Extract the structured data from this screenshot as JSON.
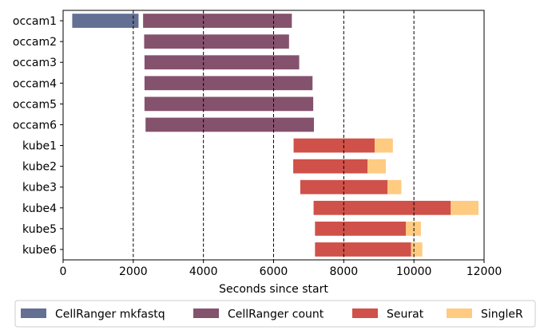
{
  "chart_data": {
    "type": "bar",
    "orientation": "horizontal",
    "stacked": true,
    "categories": [
      "occam1",
      "occam2",
      "occam3",
      "occam4",
      "occam5",
      "occam6",
      "kube1",
      "kube2",
      "kube3",
      "kube4",
      "kube5",
      "kube6"
    ],
    "xlabel": "Seconds since start",
    "xlim": [
      0,
      12000
    ],
    "x_ticks": [
      0,
      2000,
      4000,
      6000,
      8000,
      10000,
      12000
    ],
    "x_tick_labels": [
      "0",
      "2000",
      "4000",
      "6000",
      "8000",
      "10000",
      "12000"
    ],
    "vlines": [
      2000,
      4000,
      6000,
      8000,
      10000
    ],
    "vline_style": "dashed",
    "grid": false,
    "legend_position": "bottom",
    "series": [
      {
        "name": "CellRanger mkfastq",
        "color": "#636f93",
        "segments": [
          [
            260,
            2150
          ],
          null,
          null,
          null,
          null,
          null,
          null,
          null,
          null,
          null,
          null,
          null
        ]
      },
      {
        "name": "CellRanger count",
        "color": "#85526e",
        "segments": [
          [
            2280,
            6520
          ],
          [
            2310,
            6440
          ],
          [
            2320,
            6730
          ],
          [
            2320,
            7110
          ],
          [
            2320,
            7130
          ],
          [
            2350,
            7150
          ],
          null,
          null,
          null,
          null,
          null,
          null
        ]
      },
      {
        "name": "Seurat",
        "color": "#cf5149",
        "segments": [
          null,
          null,
          null,
          null,
          null,
          null,
          [
            6570,
            8880
          ],
          [
            6560,
            8680
          ],
          [
            6760,
            9250
          ],
          [
            7140,
            11050
          ],
          [
            7180,
            9770
          ],
          [
            7180,
            9920
          ]
        ]
      },
      {
        "name": "SingleR",
        "color": "#fecb81",
        "segments": [
          null,
          null,
          null,
          null,
          null,
          null,
          [
            8880,
            9400
          ],
          [
            8680,
            9200
          ],
          [
            9250,
            9640
          ],
          [
            11050,
            11840
          ],
          [
            9770,
            10200
          ],
          [
            9920,
            10240
          ]
        ]
      }
    ]
  }
}
